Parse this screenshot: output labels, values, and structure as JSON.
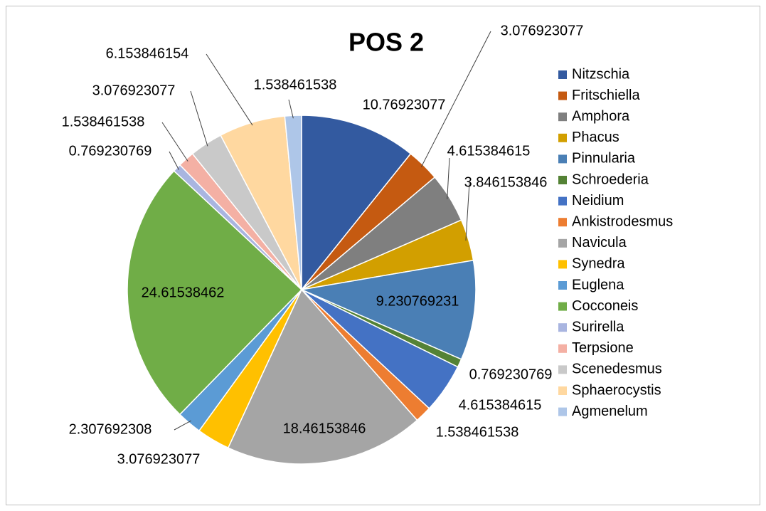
{
  "chart_data": {
    "type": "pie",
    "title": "POS 2",
    "categories": [
      "Nitzschia",
      "Fritschiella",
      "Amphora",
      "Phacus",
      "Pinnularia",
      "Schroederia",
      "Neidium",
      "Ankistrodesmus",
      "Navicula",
      "Synedra",
      "Euglena",
      "Cocconeis",
      "Surirella",
      "Terpsione",
      "Scenedesmus",
      "Sphaerocystis",
      "Agmenelum"
    ],
    "values": [
      10.76923077,
      3.076923077,
      4.615384615,
      3.846153846,
      9.230769231,
      0.769230769,
      4.615384615,
      1.538461538,
      18.46153846,
      3.076923077,
      2.307692308,
      24.61538462,
      0.769230769,
      1.538461538,
      3.076923077,
      6.153846154,
      1.538461538
    ],
    "colors": [
      "#335aa0",
      "#c55a11",
      "#7f7f7f",
      "#d29f00",
      "#4a7fb5",
      "#548235",
      "#4472c4",
      "#ed7d31",
      "#a5a5a5",
      "#ffc000",
      "#5b9bd5",
      "#70ad47",
      "#a9b5e0",
      "#f4b0a4",
      "#c9c9c9",
      "#ffd8a0",
      "#aec6e8"
    ],
    "legend": "right"
  }
}
